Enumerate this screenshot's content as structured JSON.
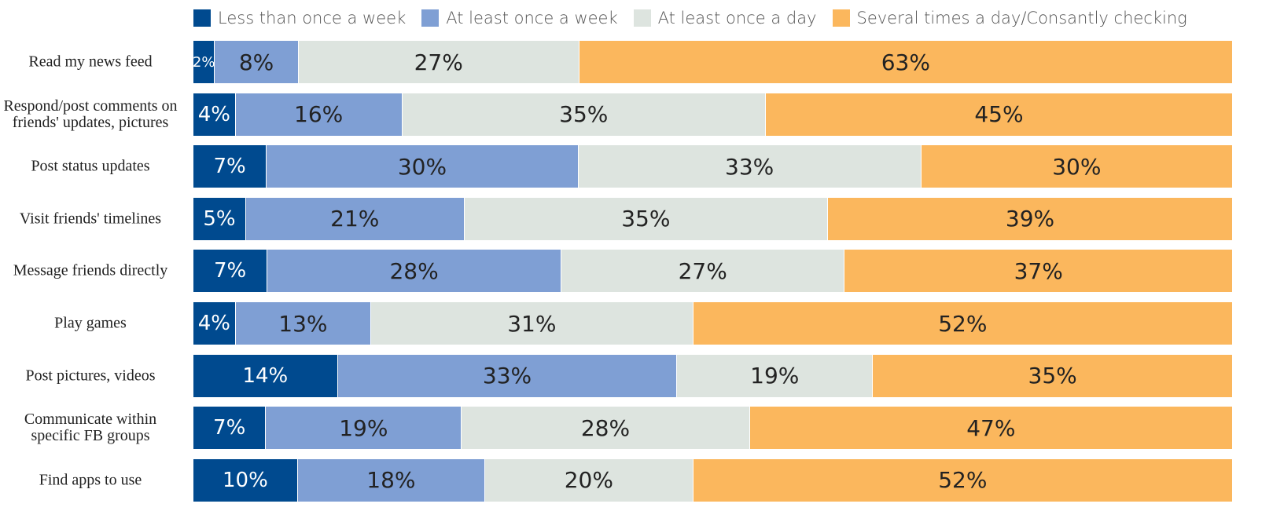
{
  "chart_data": {
    "type": "stacked-bar-horizontal",
    "categories": [
      "Read my news feed",
      "Respond/post comments on friends' updates, pictures",
      "Post status updates",
      "Visit friends' timelines",
      "Message friends directly",
      "Play games",
      "Post pictures, videos",
      "Communicate within specific FB groups",
      "Find apps to use"
    ],
    "series": [
      {
        "name": "Less than once a week",
        "color": "#004a8f",
        "values": [
          2,
          4,
          7,
          5,
          7,
          4,
          14,
          7,
          10
        ],
        "value_labels": [
          "2%",
          "4%",
          "7%",
          "5%",
          "7%",
          "4%",
          "14%",
          "7%",
          "10%"
        ]
      },
      {
        "name": "At least once a week",
        "color": "#7f9fd4",
        "values": [
          8,
          16,
          30,
          21,
          28,
          13,
          33,
          19,
          18
        ],
        "value_labels": [
          "8%",
          "16%",
          "30%",
          "21%",
          "28%",
          "13%",
          "33%",
          "19%",
          "18%"
        ]
      },
      {
        "name": "At least once a day",
        "color": "#dde4df",
        "values": [
          27,
          35,
          33,
          35,
          27,
          31,
          19,
          28,
          20
        ],
        "value_labels": [
          "27%",
          "35%",
          "33%",
          "35%",
          "27%",
          "31%",
          "19%",
          "28%",
          "20%"
        ]
      },
      {
        "name": "Several times a day/Consantly checking",
        "color": "#fbb75d",
        "values": [
          63,
          45,
          30,
          39,
          37,
          52,
          35,
          47,
          52
        ],
        "value_labels": [
          "63%",
          "45%",
          "30%",
          "39%",
          "37%",
          "52%",
          "35%",
          "47%",
          "52%"
        ]
      }
    ]
  }
}
